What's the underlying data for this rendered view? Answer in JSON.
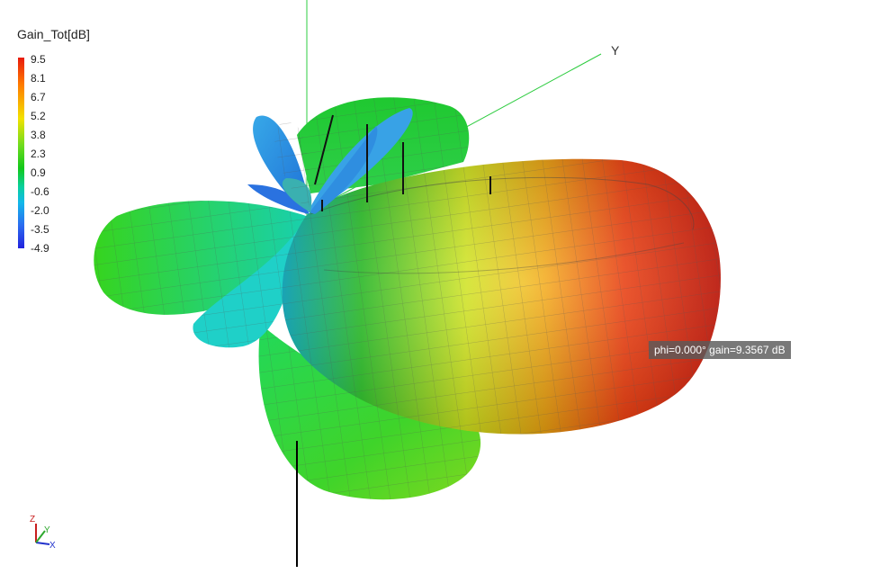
{
  "legend": {
    "title": "Gain_Tot[dB]",
    "ticks": [
      "9.5",
      "8.1",
      "6.7",
      "5.2",
      "3.8",
      "2.3",
      "0.9",
      "-0.6",
      "-2.0",
      "-3.5",
      "-4.9"
    ]
  },
  "axes": {
    "y_label": "Y",
    "triad_z": "Z",
    "triad_y": "Y",
    "triad_x": "X"
  },
  "tooltip": {
    "text": "phi=0.000° gain=9.3567 dB"
  },
  "colors": {
    "max": "#e81a0c",
    "mid_high": "#f3e200",
    "mid": "#12c81a",
    "low": "#12b8ea",
    "min": "#2222dd"
  }
}
